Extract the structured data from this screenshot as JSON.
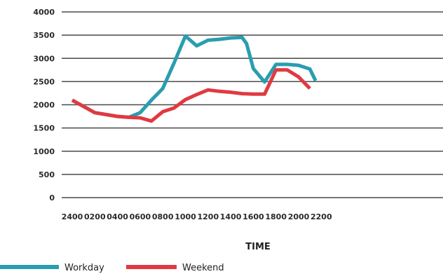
{
  "chart_data": {
    "type": "line",
    "title": "",
    "xlabel": "TIME",
    "ylabel": "",
    "ylim": [
      0,
      4000
    ],
    "yticks": [
      0,
      500,
      1000,
      1500,
      2000,
      2500,
      3000,
      3500,
      4000
    ],
    "ytick_labels": [
      "0",
      "500",
      "1000",
      "1500",
      "2000",
      "2500",
      "3000",
      "3500",
      "4000"
    ],
    "xticks": [
      "2400",
      "0200",
      "0400",
      "0600",
      "0800",
      "1000",
      "1200",
      "1400",
      "1600",
      "1800",
      "2000",
      "2200"
    ],
    "grid": "horizontal",
    "legend_position": "bottom-left",
    "series": [
      {
        "name": "Workday",
        "color": "#2a9db0",
        "x": [
          0,
          2,
          4,
          5,
          6,
          7,
          8,
          9,
          10,
          11,
          12,
          13,
          14,
          15,
          15.4,
          16,
          17,
          18,
          19,
          20,
          21,
          21.5
        ],
        "values": [
          2100,
          1830,
          1750,
          1730,
          1830,
          2100,
          2350,
          2900,
          3480,
          3270,
          3390,
          3410,
          3440,
          3450,
          3320,
          2780,
          2490,
          2870,
          2870,
          2850,
          2770,
          2520
        ]
      },
      {
        "name": "Weekend",
        "color": "#e03a40",
        "x": [
          0,
          2,
          4,
          5,
          6,
          7,
          8,
          9,
          10,
          11,
          12,
          13,
          14,
          15,
          16,
          17,
          18,
          19,
          20,
          21
        ],
        "values": [
          2100,
          1830,
          1750,
          1730,
          1720,
          1650,
          1850,
          1930,
          2110,
          2220,
          2320,
          2290,
          2270,
          2240,
          2230,
          2230,
          2750,
          2750,
          2600,
          2350
        ]
      }
    ]
  }
}
